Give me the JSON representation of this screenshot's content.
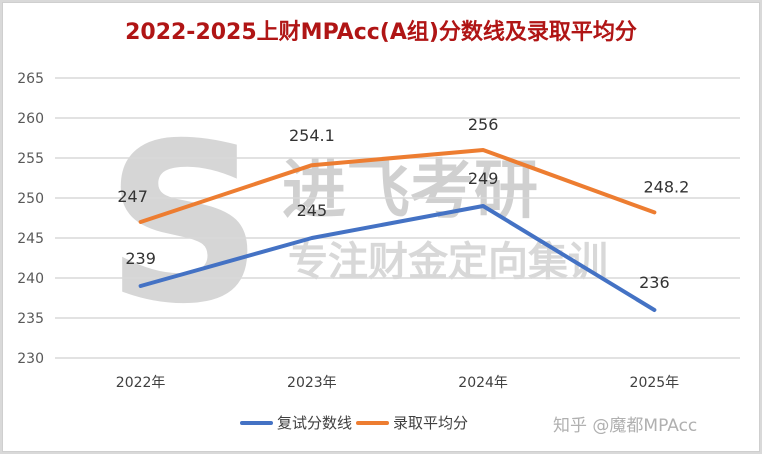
{
  "title": "2022-2025上财MPAcc(A组)分数线及录取平均分",
  "watermark": {
    "logo_letter": "S",
    "brand": "进飞考研",
    "slogan": "专注财金定向集训",
    "source": "知乎 @魔都MPAcc"
  },
  "colors": {
    "series_retest": "#4472c4",
    "series_admit_avg": "#ed7d31",
    "title": "#b01515",
    "grid": "#d9d9d9"
  },
  "legend": {
    "items": [
      {
        "label": "复试分数线",
        "color": "#4472c4"
      },
      {
        "label": "录取平均分",
        "color": "#ed7d31"
      }
    ]
  },
  "y_ticks": [
    "265",
    "260",
    "255",
    "250",
    "245",
    "240",
    "235",
    "230"
  ],
  "x_ticks": [
    "2022年",
    "2023年",
    "2024年",
    "2025年"
  ],
  "chart_data": {
    "type": "line",
    "title": "2022-2025上财MPAcc(A组)分数线及录取平均分",
    "categories": [
      "2022年",
      "2023年",
      "2024年",
      "2025年"
    ],
    "series": [
      {
        "name": "复试分数线",
        "values": [
          239,
          245,
          249,
          236
        ],
        "labels": [
          "239",
          "245",
          "249",
          "236"
        ]
      },
      {
        "name": "录取平均分",
        "values": [
          247,
          254.1,
          256,
          248.2
        ],
        "labels": [
          "247",
          "254.1",
          "256",
          "248.2"
        ]
      }
    ],
    "xlabel": "",
    "ylabel": "",
    "ylim": [
      230,
      265
    ],
    "ytick_step": 5,
    "grid": true,
    "legend_position": "bottom"
  }
}
